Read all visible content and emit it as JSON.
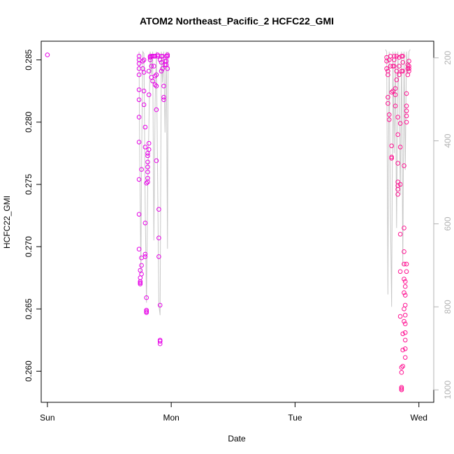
{
  "chart_data": {
    "type": "scatter",
    "title": "ATOM2 Northeast_Pacific_2 HCFC22_GMI",
    "xlabel": "Date",
    "ylabel": "HCFC22_GMI",
    "x_ticks": [
      {
        "label": "Sun",
        "value": 0
      },
      {
        "label": "Mon",
        "value": 1
      },
      {
        "label": "Tue",
        "value": 2
      },
      {
        "label": "Wed",
        "value": 3
      }
    ],
    "y_ticks": [
      0.26,
      0.265,
      0.27,
      0.275,
      0.28,
      0.285
    ],
    "y_tick_labels": [
      "0.260",
      "0.265",
      "0.270",
      "0.275",
      "0.280",
      "0.285"
    ],
    "right_axis_ticks": [
      200,
      400,
      600,
      800,
      1000
    ],
    "right_axis_tick_labels": [
      "200",
      "400",
      "600",
      "800",
      "1000"
    ],
    "xlim": [
      -0.05,
      3.12
    ],
    "ylim": [
      0.2575,
      0.2865
    ],
    "right_axis_ylim": [
      1030,
      160
    ],
    "right_axis_reversed": true,
    "grid": false,
    "colors": {
      "points_series_1": "#e600e6",
      "points_series_2": "#ff1493",
      "pressure_line": "#c8c8c8",
      "right_axis": "#b3b3b3"
    },
    "series": [
      {
        "values": [
          [
            0.0,
            0.2854
          ],
          [
            0.74,
            0.2853
          ],
          [
            0.74,
            0.285
          ],
          [
            0.74,
            0.2847
          ],
          [
            0.74,
            0.2843
          ],
          [
            0.74,
            0.2838
          ],
          [
            0.74,
            0.2826
          ],
          [
            0.74,
            0.2818
          ],
          [
            0.74,
            0.2804
          ],
          [
            0.74,
            0.2784
          ],
          [
            0.74,
            0.2754
          ],
          [
            0.74,
            0.2726
          ],
          [
            0.74,
            0.2698
          ],
          [
            0.75,
            0.2681
          ],
          [
            0.75,
            0.2675
          ],
          [
            0.75,
            0.2672
          ],
          [
            0.75,
            0.2671
          ],
          [
            0.75,
            0.267
          ],
          [
            0.76,
            0.2685
          ],
          [
            0.76,
            0.2678
          ],
          [
            0.76,
            0.2691
          ],
          [
            0.76,
            0.2762
          ],
          [
            0.77,
            0.2849
          ],
          [
            0.77,
            0.2843
          ],
          [
            0.78,
            0.285
          ],
          [
            0.78,
            0.2814
          ],
          [
            0.78,
            0.284
          ],
          [
            0.78,
            0.2825
          ],
          [
            0.79,
            0.2796
          ],
          [
            0.79,
            0.278
          ],
          [
            0.79,
            0.2719
          ],
          [
            0.79,
            0.2692
          ],
          [
            0.79,
            0.2694
          ],
          [
            0.8,
            0.2659
          ],
          [
            0.8,
            0.2649
          ],
          [
            0.8,
            0.2648
          ],
          [
            0.8,
            0.2647
          ],
          [
            0.8,
            0.2751
          ],
          [
            0.81,
            0.2752
          ],
          [
            0.81,
            0.2755
          ],
          [
            0.81,
            0.276
          ],
          [
            0.81,
            0.2764
          ],
          [
            0.81,
            0.2768
          ],
          [
            0.81,
            0.2773
          ],
          [
            0.81,
            0.2775
          ],
          [
            0.82,
            0.2778
          ],
          [
            0.82,
            0.2783
          ],
          [
            0.82,
            0.2822
          ],
          [
            0.82,
            0.2841
          ],
          [
            0.83,
            0.2852
          ],
          [
            0.83,
            0.2853
          ],
          [
            0.83,
            0.285
          ],
          [
            0.84,
            0.2853
          ],
          [
            0.84,
            0.2845
          ],
          [
            0.84,
            0.2836
          ],
          [
            0.85,
            0.2833
          ],
          [
            0.85,
            0.2853
          ],
          [
            0.86,
            0.2853
          ],
          [
            0.86,
            0.2845
          ],
          [
            0.87,
            0.283
          ],
          [
            0.87,
            0.2853
          ],
          [
            0.87,
            0.2837
          ],
          [
            0.88,
            0.2829
          ],
          [
            0.88,
            0.281
          ],
          [
            0.88,
            0.2769
          ],
          [
            0.88,
            0.2838
          ],
          [
            0.89,
            0.2854
          ],
          [
            0.89,
            0.2853
          ],
          [
            0.9,
            0.273
          ],
          [
            0.9,
            0.2707
          ],
          [
            0.9,
            0.2692
          ],
          [
            0.91,
            0.2653
          ],
          [
            0.91,
            0.2625
          ],
          [
            0.91,
            0.2624
          ],
          [
            0.91,
            0.2622
          ],
          [
            0.91,
            0.285
          ],
          [
            0.92,
            0.2853
          ],
          [
            0.92,
            0.2841
          ],
          [
            0.92,
            0.2848
          ],
          [
            0.93,
            0.2853
          ],
          [
            0.93,
            0.2843
          ],
          [
            0.94,
            0.282
          ],
          [
            0.94,
            0.2818
          ],
          [
            0.94,
            0.2829
          ],
          [
            0.95,
            0.2846
          ],
          [
            0.95,
            0.2849
          ],
          [
            0.96,
            0.2853
          ],
          [
            0.96,
            0.2849
          ],
          [
            0.96,
            0.2846
          ],
          [
            0.97,
            0.2843
          ],
          [
            0.97,
            0.2854
          ],
          [
            0.97,
            0.2853
          ]
        ]
      },
      {
        "values": [
          [
            2.74,
            0.2852
          ],
          [
            2.74,
            0.2849
          ],
          [
            2.74,
            0.2843
          ],
          [
            2.75,
            0.2838
          ],
          [
            2.75,
            0.2841
          ],
          [
            2.75,
            0.282
          ],
          [
            2.75,
            0.2815
          ],
          [
            2.76,
            0.2806
          ],
          [
            2.76,
            0.2802
          ],
          [
            2.76,
            0.285
          ],
          [
            2.77,
            0.2853
          ],
          [
            2.77,
            0.2845
          ],
          [
            2.78,
            0.2824
          ],
          [
            2.78,
            0.2781
          ],
          [
            2.78,
            0.2772
          ],
          [
            2.78,
            0.2771
          ],
          [
            2.79,
            0.2825
          ],
          [
            2.79,
            0.2845
          ],
          [
            2.8,
            0.285
          ],
          [
            2.8,
            0.2853
          ],
          [
            2.8,
            0.2845
          ],
          [
            2.81,
            0.2822
          ],
          [
            2.81,
            0.2813
          ],
          [
            2.81,
            0.2827
          ],
          [
            2.82,
            0.2834
          ],
          [
            2.82,
            0.2853
          ],
          [
            2.82,
            0.2841
          ],
          [
            2.83,
            0.2804
          ],
          [
            2.83,
            0.279
          ],
          [
            2.83,
            0.2767
          ],
          [
            2.83,
            0.2752
          ],
          [
            2.83,
            0.2749
          ],
          [
            2.83,
            0.2746
          ],
          [
            2.83,
            0.2742
          ],
          [
            2.84,
            0.2852
          ],
          [
            2.84,
            0.2845
          ],
          [
            2.84,
            0.2838
          ],
          [
            2.85,
            0.2799
          ],
          [
            2.85,
            0.278
          ],
          [
            2.85,
            0.275
          ],
          [
            2.85,
            0.271
          ],
          [
            2.85,
            0.268
          ],
          [
            2.85,
            0.2644
          ],
          [
            2.86,
            0.2853
          ],
          [
            2.86,
            0.2841
          ],
          [
            2.86,
            0.2603
          ],
          [
            2.86,
            0.2599
          ],
          [
            2.86,
            0.2587
          ],
          [
            2.86,
            0.2586
          ],
          [
            2.86,
            0.2585
          ],
          [
            2.87,
            0.2853
          ],
          [
            2.87,
            0.2848
          ],
          [
            2.87,
            0.2841
          ],
          [
            2.87,
            0.2604
          ],
          [
            2.87,
            0.2617
          ],
          [
            2.87,
            0.263
          ],
          [
            2.88,
            0.264
          ],
          [
            2.88,
            0.265
          ],
          [
            2.88,
            0.2663
          ],
          [
            2.88,
            0.2674
          ],
          [
            2.88,
            0.2686
          ],
          [
            2.88,
            0.2696
          ],
          [
            2.88,
            0.2715
          ],
          [
            2.88,
            0.2765
          ],
          [
            2.89,
            0.2672
          ],
          [
            2.89,
            0.2668
          ],
          [
            2.89,
            0.2661
          ],
          [
            2.89,
            0.2653
          ],
          [
            2.89,
            0.2645
          ],
          [
            2.89,
            0.2638
          ],
          [
            2.89,
            0.2631
          ],
          [
            2.89,
            0.2625
          ],
          [
            2.89,
            0.2618
          ],
          [
            2.89,
            0.2611
          ],
          [
            2.9,
            0.2686
          ],
          [
            2.9,
            0.268
          ],
          [
            2.9,
            0.28
          ],
          [
            2.9,
            0.2805
          ],
          [
            2.9,
            0.2809
          ],
          [
            2.9,
            0.2813
          ],
          [
            2.9,
            0.2823
          ],
          [
            2.91,
            0.2838
          ],
          [
            2.91,
            0.2843
          ],
          [
            2.91,
            0.2846
          ],
          [
            2.92,
            0.2849
          ],
          [
            2.92,
            0.2843
          ],
          [
            2.92,
            0.2845
          ],
          [
            2.92,
            0.2841
          ]
        ]
      }
    ],
    "pressure_line_segments": [
      {
        "x": [
          0.74,
          0.745,
          0.75,
          0.755,
          0.76,
          0.77,
          0.78,
          0.79,
          0.8,
          0.81,
          0.82,
          0.83,
          0.84,
          0.85,
          0.86,
          0.87,
          0.88,
          0.89,
          0.9,
          0.91,
          0.92,
          0.93,
          0.94,
          0.95,
          0.96,
          0.97,
          0.975
        ],
        "y": [
          185,
          420,
          560,
          720,
          470,
          185,
          190,
          560,
          790,
          510,
          360,
          185,
          240,
          185,
          640,
          310,
          185,
          480,
          795,
          820,
          185,
          260,
          185,
          380,
          185,
          660,
          185
        ]
      },
      {
        "x": [
          2.73,
          2.74,
          2.75,
          2.755,
          2.76,
          2.77,
          2.78,
          2.79,
          2.8,
          2.81,
          2.82,
          2.83,
          2.84,
          2.85,
          2.86,
          2.87,
          2.88,
          2.89,
          2.9,
          2.91,
          2.92,
          2.93
        ],
        "y": [
          180,
          185,
          770,
          420,
          185,
          560,
          800,
          185,
          430,
          185,
          610,
          185,
          300,
          530,
          185,
          700,
          185,
          470,
          185,
          240,
          185,
          180
        ]
      }
    ]
  }
}
